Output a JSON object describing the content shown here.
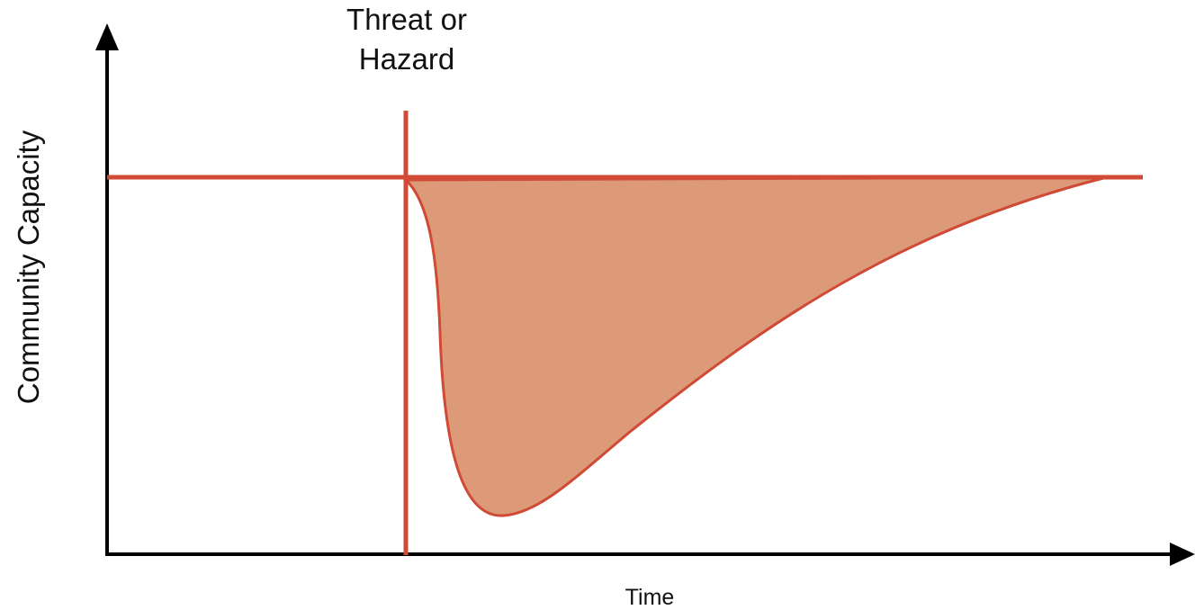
{
  "event_label": [
    "Threat or",
    "Hazard"
  ],
  "y_axis_label": "Community Capacity",
  "x_axis_label": "Time"
}
